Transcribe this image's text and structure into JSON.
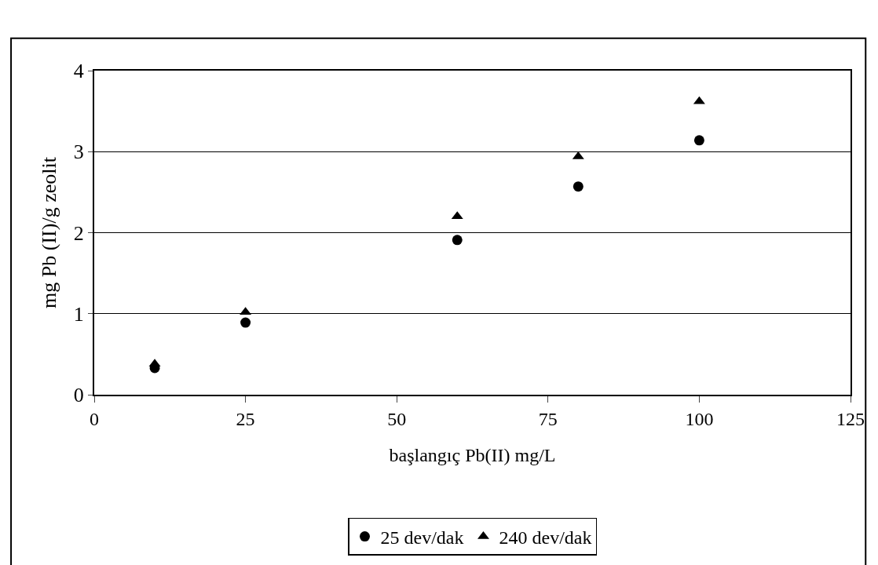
{
  "chart_data": {
    "type": "scatter",
    "xlabel": "başlangıç Pb(II) mg/L",
    "ylabel": "mg Pb (II)/g zeolit",
    "x": [
      10,
      25,
      60,
      80,
      100
    ],
    "series": [
      {
        "name": "25 dev/dak",
        "color": "#000000",
        "marker": "circle",
        "values": [
          0.33,
          0.89,
          1.91,
          2.57,
          3.14
        ]
      },
      {
        "name": "240 dev/dak",
        "color": "#000000",
        "marker": "triangle",
        "values": [
          0.38,
          1.02,
          2.2,
          2.94,
          3.62
        ]
      }
    ],
    "xlim": [
      0,
      125
    ],
    "xticks": [
      0,
      25,
      50,
      75,
      100,
      125
    ],
    "ylim": [
      0,
      4
    ],
    "yticks": [
      0,
      1,
      2,
      3,
      4
    ],
    "grid": "y",
    "legend": "bottom"
  }
}
